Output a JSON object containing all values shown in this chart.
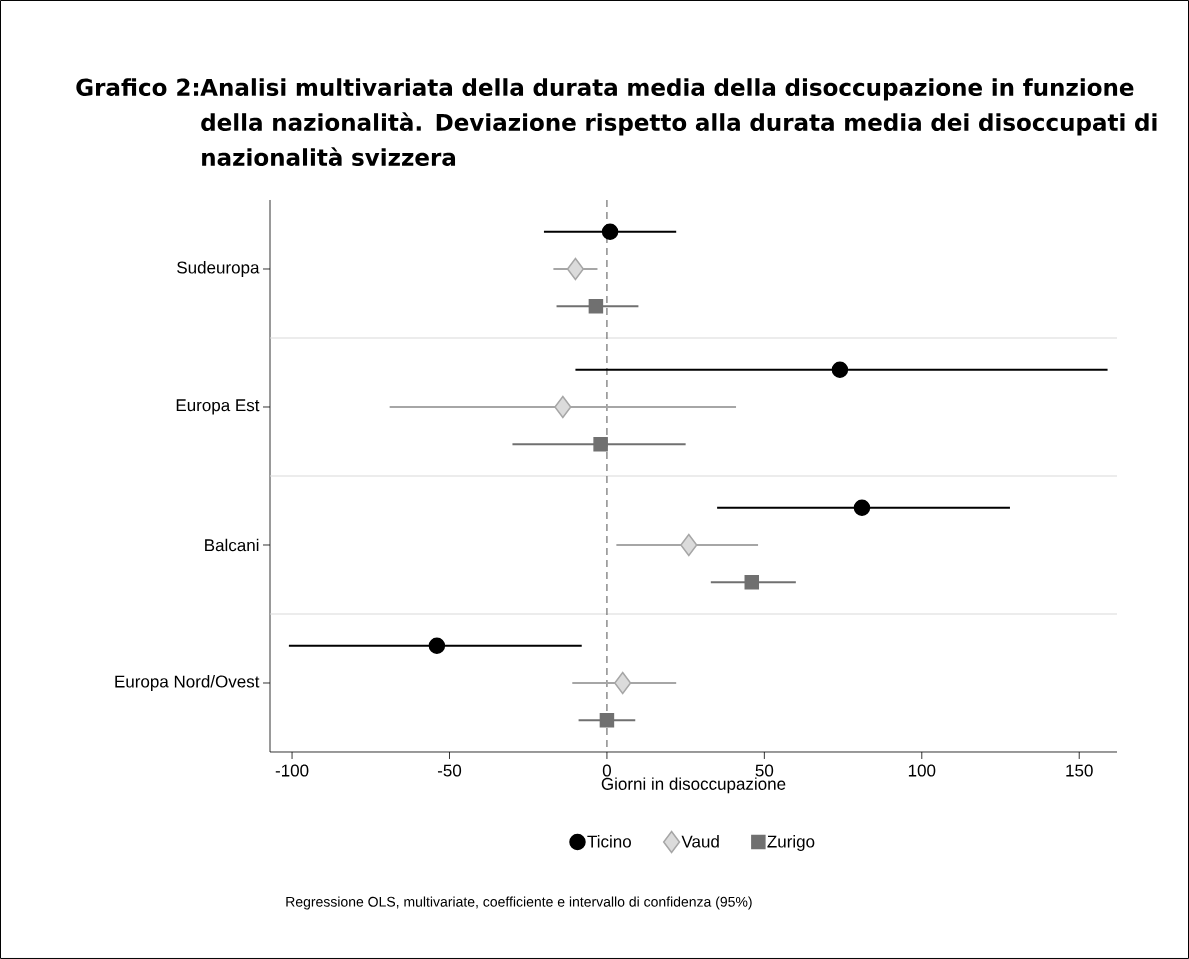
{
  "chart_data": {
    "type": "scatter",
    "orientation": "horizontal",
    "title": "Grafico 2:",
    "subtitle": "Analisi multivariata della durata media della disoccupazione in funzione della nazionalità. Deviazione rispetto alla durata media dei disoccupati di nazionalità svizzera",
    "xlabel": "Giorni in disoccupazione",
    "annotations": [
      "Regressione OLS, multivariate, coefficiente e intervallo di confidenza (95%)"
    ],
    "categories": [
      "Sudeuropa",
      "Europa Est",
      "Balcani",
      "Europa Nord/Ovest"
    ],
    "xlim": [
      -107,
      162
    ],
    "xticks": [
      -100,
      -50,
      0,
      50,
      100,
      150
    ],
    "grid": "y",
    "legend": "bottom",
    "ref_lines": [
      {
        "axis": "x",
        "value": 0,
        "line_style": "dashed",
        "color": "#707070"
      }
    ],
    "series": [
      {
        "name": "Ticino",
        "color": "#000000",
        "marker": "circle",
        "values": [
          1,
          74,
          81,
          -54
        ],
        "errors": [
          [
            -20,
            22
          ],
          [
            -10,
            159
          ],
          [
            35,
            128
          ],
          [
            -101,
            -8
          ]
        ]
      },
      {
        "name": "Vaud",
        "color": "#a6a6a6",
        "marker": "diamond",
        "values": [
          -10,
          -14,
          26,
          5
        ],
        "errors": [
          [
            -17,
            -3
          ],
          [
            -69,
            41
          ],
          [
            3,
            48
          ],
          [
            -11,
            22
          ]
        ]
      },
      {
        "name": "Zurigo",
        "color": "#707070",
        "marker": "square",
        "values": [
          -3.5,
          -2,
          46,
          0
        ],
        "errors": [
          [
            -16,
            10
          ],
          [
            -30,
            25
          ],
          [
            33,
            60
          ],
          [
            -9,
            9
          ]
        ]
      }
    ]
  }
}
